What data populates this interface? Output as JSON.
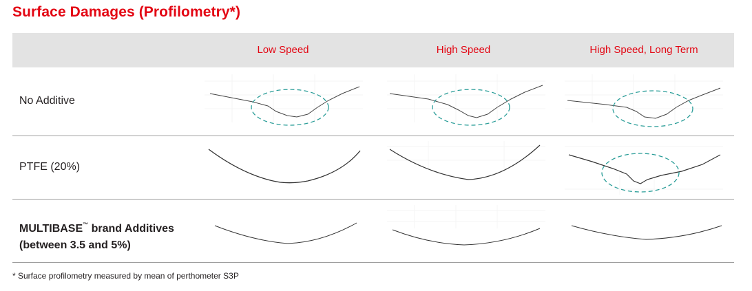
{
  "page": {
    "title": "Surface Damages (Profilometry*)",
    "footnote": "* Surface profilometry measured by mean of perthometer S3P"
  },
  "columns": [
    "Low Speed",
    "High Speed",
    "High Speed, Long Term"
  ],
  "rows": [
    {
      "label": "No Additive",
      "bold": false
    },
    {
      "label": "PTFE (20%)",
      "bold": false
    },
    {
      "label_part1": "MULTIBASE",
      "label_tm": "™",
      "label_part2": " brand Additives",
      "label_line2": "(between 3.5 and 5%)",
      "bold": true
    }
  ],
  "colors": {
    "accent": "#e30613",
    "header_band": "#e3e3e3",
    "damage_marker": "#2a9d98",
    "profile_line": "#333333"
  },
  "icons": [
    "dashed-ellipse-damage-marker"
  ],
  "profiles": [
    {
      "row": "No Additive",
      "column": "Low Speed",
      "damage_marked": true
    },
    {
      "row": "No Additive",
      "column": "High Speed",
      "damage_marked": true
    },
    {
      "row": "No Additive",
      "column": "High Speed, Long Term",
      "damage_marked": true
    },
    {
      "row": "PTFE (20%)",
      "column": "Low Speed",
      "damage_marked": false
    },
    {
      "row": "PTFE (20%)",
      "column": "High Speed",
      "damage_marked": false
    },
    {
      "row": "PTFE (20%)",
      "column": "High Speed, Long Term",
      "damage_marked": true
    },
    {
      "row": "MULTIBASE brand Additives",
      "column": "Low Speed",
      "damage_marked": false
    },
    {
      "row": "MULTIBASE brand Additives",
      "column": "High Speed",
      "damage_marked": false
    },
    {
      "row": "MULTIBASE brand Additives",
      "column": "High Speed, Long Term",
      "damage_marked": false
    }
  ]
}
